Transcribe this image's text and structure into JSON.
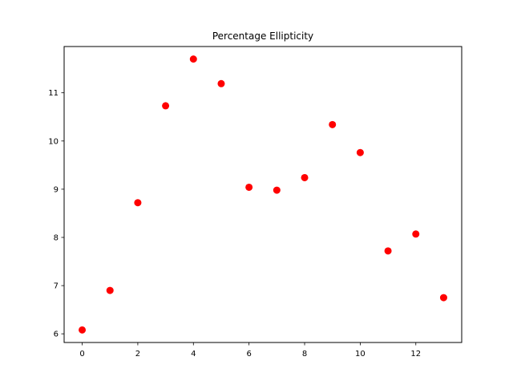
{
  "chart_data": {
    "type": "scatter",
    "title": "Percentage Ellipticity",
    "xlabel": "",
    "ylabel": "",
    "x": [
      0,
      1,
      2,
      3,
      4,
      5,
      6,
      7,
      8,
      9,
      10,
      11,
      12,
      13
    ],
    "y": [
      6.08,
      6.9,
      8.72,
      10.73,
      11.7,
      11.19,
      9.04,
      8.98,
      9.24,
      10.34,
      9.76,
      7.72,
      8.07,
      6.75
    ],
    "xlim": [
      -0.65,
      13.65
    ],
    "ylim": [
      5.82,
      11.96
    ],
    "xticks": [
      0,
      2,
      4,
      6,
      8,
      10,
      12
    ],
    "yticks": [
      6,
      7,
      8,
      9,
      10,
      11
    ],
    "grid": false,
    "legend": "none",
    "marker_color": "#ff0000"
  }
}
